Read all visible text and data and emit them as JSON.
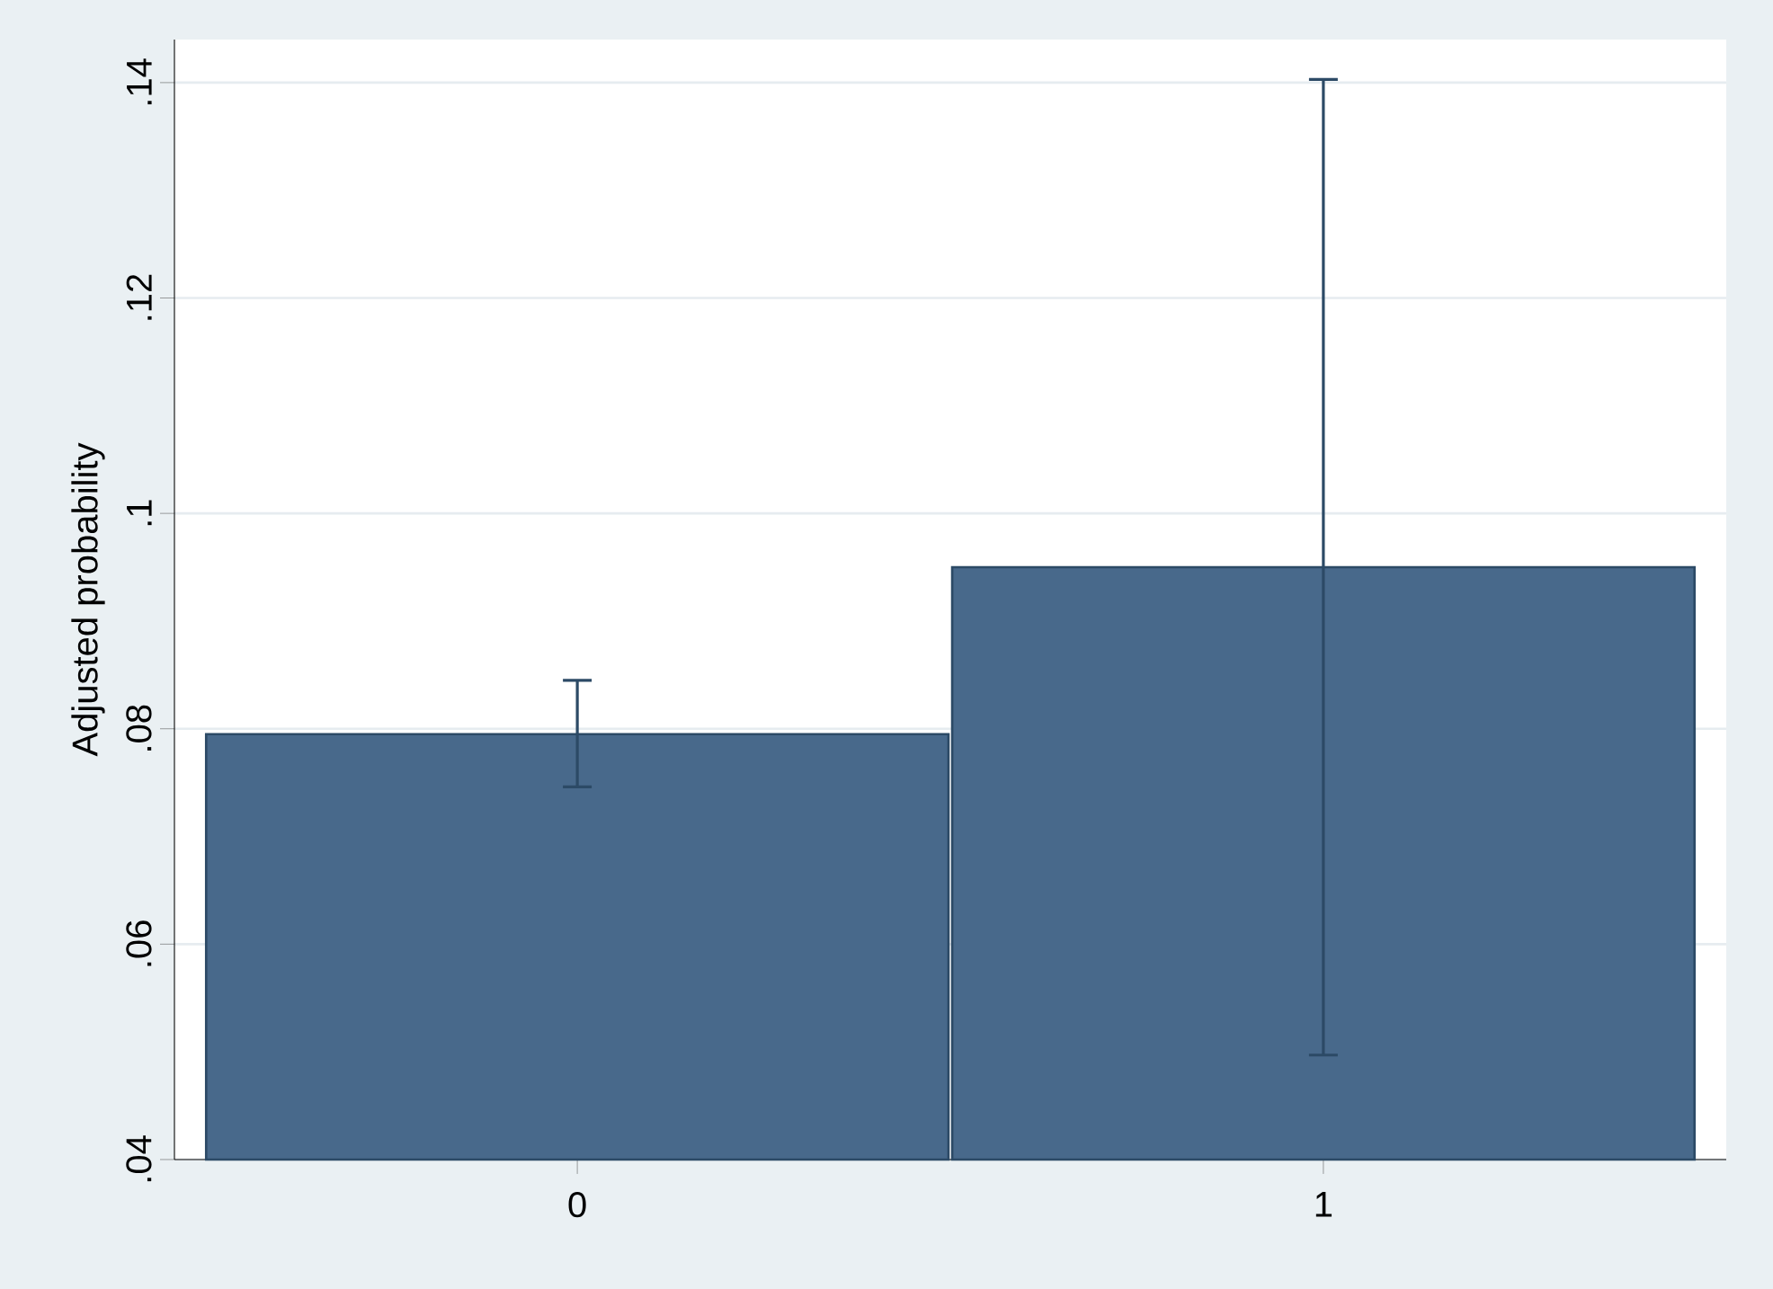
{
  "chart_data": {
    "type": "bar",
    "ylabel": "Adjusted probability",
    "categories": [
      "0",
      "1"
    ],
    "values": [
      0.0795,
      0.095
    ],
    "color": "#48698b",
    "errors": [
      [
        0.0746,
        0.0845
      ],
      [
        0.0497,
        0.1403
      ]
    ],
    "ylim": [
      0.04,
      0.144
    ],
    "yticks": [
      {
        "value": 0.04,
        "label": ".04"
      },
      {
        "value": 0.06,
        "label": ".06"
      },
      {
        "value": 0.08,
        "label": ".08"
      },
      {
        "value": 0.1,
        "label": ".1"
      },
      {
        "value": 0.12,
        "label": ".12"
      },
      {
        "value": 0.14,
        "label": ".14"
      }
    ],
    "grid": "y"
  }
}
